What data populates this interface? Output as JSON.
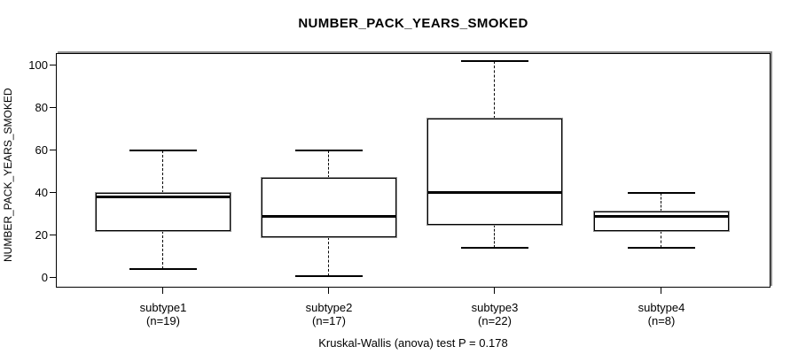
{
  "chart_data": {
    "type": "box",
    "title": "NUMBER_PACK_YEARS_SMOKED",
    "ylabel": "NUMBER_PACK_YEARS_SMOKED",
    "xlabel": "",
    "footer": "Kruskal-Wallis (anova) test P = 0.178",
    "ylim": [
      0,
      100
    ],
    "yticks": [
      0,
      20,
      40,
      60,
      80,
      100
    ],
    "grid": false,
    "legend": null,
    "categories": [
      "subtype1",
      "subtype2",
      "subtype3",
      "subtype4"
    ],
    "groups": [
      {
        "label": "subtype1",
        "sublabel": "(n=19)",
        "n": 19,
        "whisker_low": 4,
        "q1": 22,
        "median": 38,
        "q3": 40,
        "whisker_high": 60
      },
      {
        "label": "subtype2",
        "sublabel": "(n=17)",
        "n": 17,
        "whisker_low": 1,
        "q1": 19,
        "median": 29,
        "q3": 47,
        "whisker_high": 60
      },
      {
        "label": "subtype3",
        "sublabel": "(n=22)",
        "n": 22,
        "whisker_low": 14,
        "q1": 25,
        "median": 40,
        "q3": 75,
        "whisker_high": 102
      },
      {
        "label": "subtype4",
        "sublabel": "(n=8)",
        "n": 8,
        "whisker_low": 14,
        "q1": 22,
        "median": 29,
        "q3": 31,
        "whisker_high": 40
      }
    ],
    "colors": {
      "line": "#000000",
      "box_fill": "#ffffff",
      "shadow": "#8e8e8e",
      "background": "#ffffff",
      "text": "#000000"
    }
  }
}
